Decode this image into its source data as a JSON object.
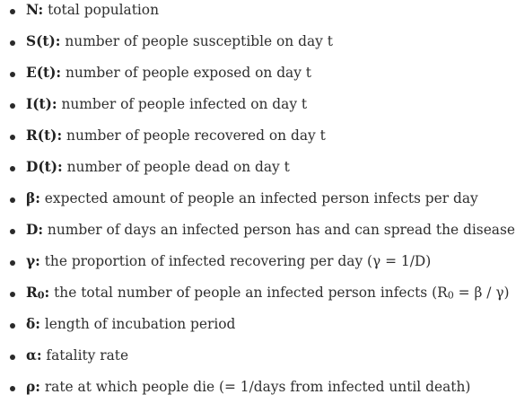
{
  "definitions": [
    {
      "term": "N:",
      "desc": " total population"
    },
    {
      "term": "S(t):",
      "desc": " number of people susceptible on day t"
    },
    {
      "term": "E(t):",
      "desc": " number of people exposed on day t"
    },
    {
      "term": "I(t):",
      "desc": " number of people infected on day t"
    },
    {
      "term": "R(t):",
      "desc": " number of people recovered on day t"
    },
    {
      "term": "D(t):",
      "desc": " number of people dead on day t"
    },
    {
      "term": "β:",
      "desc": " expected amount of people an infected person infects per day"
    },
    {
      "term": "D:",
      "desc": " number of days an infected person has and can spread the disease"
    },
    {
      "term": "γ:",
      "desc": " the proportion of infected recovering per day (γ = 1/D)"
    },
    {
      "term_main": "R",
      "term_sub": "0",
      "term_tail": ":",
      "desc_a": " the total number of people an infected person infects (R",
      "desc_sub": "0",
      "desc_b": " = β / γ)"
    },
    {
      "term": "δ:",
      "desc": " length of incubation period"
    },
    {
      "term": "α:",
      "desc": " fatality rate"
    },
    {
      "term": "ρ:",
      "desc": " rate at which people die (= 1/days from infected until death)"
    }
  ]
}
